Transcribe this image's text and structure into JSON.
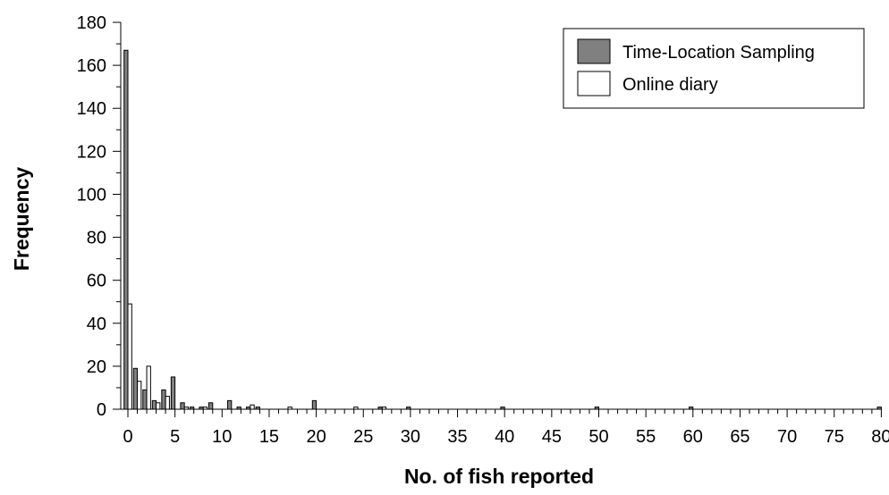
{
  "chart_data": {
    "type": "bar",
    "title": "",
    "xlabel": "No. of fish reported",
    "ylabel": "Frequency",
    "xlim": [
      0,
      80
    ],
    "ylim": [
      0,
      180
    ],
    "x_ticks": [
      0,
      5,
      10,
      15,
      20,
      25,
      30,
      35,
      40,
      45,
      50,
      55,
      60,
      65,
      70,
      75,
      80
    ],
    "y_ticks": [
      0,
      20,
      40,
      60,
      80,
      100,
      120,
      140,
      160,
      180
    ],
    "legend_position": "top-right",
    "grid": false,
    "x": [
      0,
      1,
      2,
      3,
      4,
      5,
      6,
      7,
      8,
      9,
      10,
      11,
      12,
      13,
      14,
      15,
      16,
      17,
      18,
      19,
      20,
      21,
      22,
      23,
      24,
      25,
      26,
      27,
      28,
      29,
      30,
      31,
      32,
      33,
      34,
      35,
      36,
      37,
      38,
      39,
      40,
      41,
      42,
      43,
      44,
      45,
      46,
      47,
      48,
      49,
      50,
      51,
      52,
      53,
      54,
      55,
      56,
      57,
      58,
      59,
      60,
      61,
      62,
      63,
      64,
      65,
      66,
      67,
      68,
      69,
      70,
      71,
      72,
      73,
      74,
      75,
      76,
      77,
      78,
      79,
      80
    ],
    "series": [
      {
        "name": "Time-Location Sampling",
        "color": "#808080",
        "values": [
          167,
          19,
          9,
          4,
          9,
          15,
          3,
          1,
          1,
          3,
          0,
          4,
          1,
          1,
          1,
          0,
          0,
          0,
          0,
          0,
          4,
          0,
          0,
          0,
          0,
          0,
          0,
          1,
          0,
          0,
          1,
          0,
          0,
          0,
          0,
          0,
          0,
          0,
          0,
          0,
          1,
          0,
          0,
          0,
          0,
          0,
          0,
          0,
          0,
          0,
          1,
          0,
          0,
          0,
          0,
          0,
          0,
          0,
          0,
          0,
          1,
          0,
          0,
          0,
          0,
          0,
          0,
          0,
          0,
          0,
          0,
          0,
          0,
          0,
          0,
          0,
          0,
          0,
          0,
          0,
          1
        ]
      },
      {
        "name": "Online diary",
        "color": "#ffffff",
        "values": [
          49,
          13,
          20,
          3,
          6,
          0,
          1,
          0,
          1,
          0,
          0,
          0,
          0,
          2,
          0,
          0,
          0,
          1,
          0,
          0,
          0,
          0,
          0,
          0,
          1,
          0,
          0,
          1,
          0,
          0,
          0,
          0,
          0,
          0,
          0,
          0,
          0,
          0,
          0,
          0,
          0,
          0,
          0,
          0,
          0,
          0,
          0,
          0,
          0,
          0,
          0,
          0,
          0,
          0,
          0,
          0,
          0,
          0,
          0,
          0,
          0,
          0,
          0,
          0,
          0,
          0,
          0,
          0,
          0,
          0,
          0,
          0,
          0,
          0,
          0,
          0,
          0,
          0,
          0,
          0,
          0
        ]
      }
    ]
  }
}
